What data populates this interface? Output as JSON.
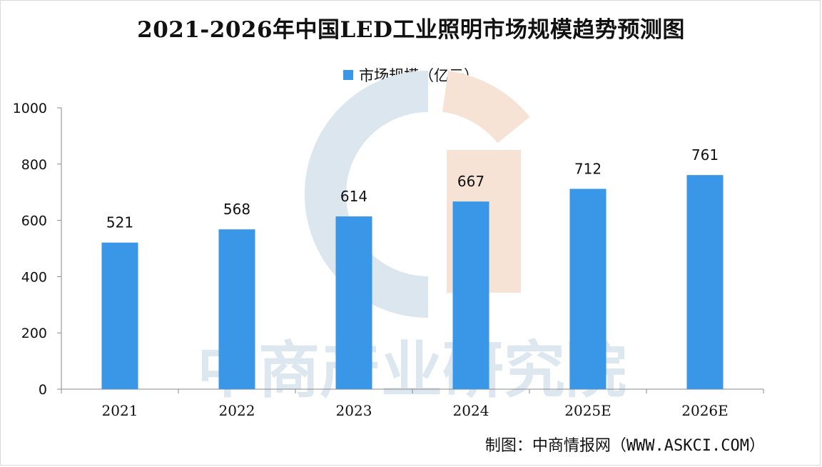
{
  "chart_data": {
    "type": "bar",
    "title": "2021-2026年中国LED工业照明市场规模趋势预测图",
    "categories": [
      "2021",
      "2022",
      "2023",
      "2024",
      "2025E",
      "2026E"
    ],
    "series": [
      {
        "name": "市场规模（亿元）",
        "values": [
          521,
          568,
          614,
          667,
          712,
          761
        ]
      }
    ],
    "ylim": [
      0,
      1000
    ],
    "yticks": [
      0,
      200,
      400,
      600,
      800,
      1000
    ],
    "grid": false,
    "legend_position": "top-center",
    "data_labels": true
  },
  "watermark": "中商产业研究院",
  "source": "制图：中商情报网（WWW.ASKCI.COM）",
  "colors": {
    "bar": "#3a96e6",
    "axis": "#888888",
    "text": "#111111",
    "watermark_blue": "#dbe6ef",
    "watermark_orange": "#f7e3d6"
  }
}
